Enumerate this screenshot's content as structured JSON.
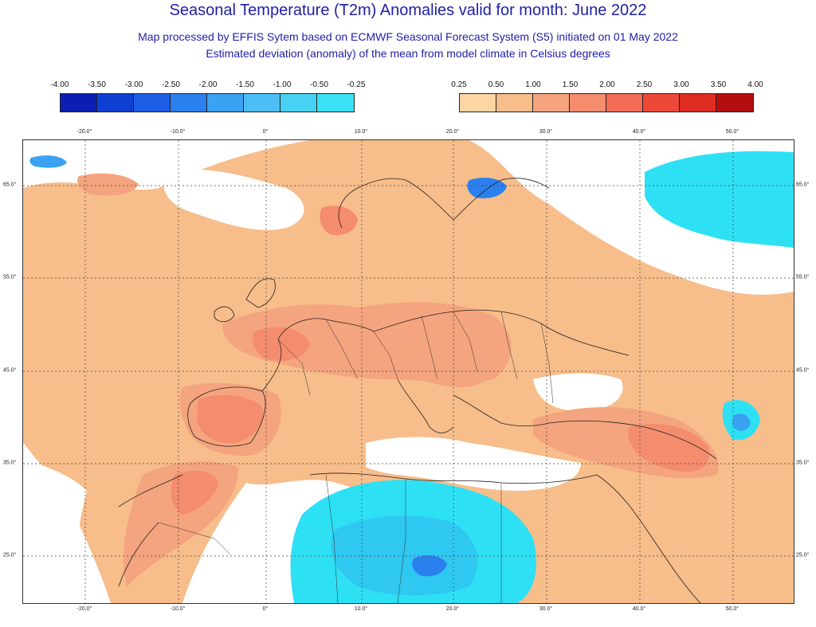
{
  "header": {
    "title": "Seasonal Temperature (T2m) Anomalies valid for month: June 2022",
    "subtitle1": "Map processed by EFFIS Sytem based on ECMWF Seasonal Forecast System (S5) initiated on 01 May 2022",
    "subtitle2": "Estimated deviation (anomaly) of the mean from model climate in Celsius degrees"
  },
  "legend": {
    "negative": {
      "labels": [
        "-4.00",
        "-3.50",
        "-3.00",
        "-2.50",
        "-2.00",
        "-1.50",
        "-1.00",
        "-0.50",
        "-0.25"
      ],
      "colors": [
        "#0a1eb4",
        "#0f3ed2",
        "#1e5ee6",
        "#2a80ee",
        "#3aa2f2",
        "#4cbef4",
        "#48d2f2",
        "#3ae2f6",
        "#3ff2f6"
      ]
    },
    "positive": {
      "labels": [
        "0.25",
        "0.50",
        "1.00",
        "1.50",
        "2.00",
        "2.50",
        "3.00",
        "3.50",
        "4.00"
      ],
      "colors": [
        "#fbd6a4",
        "#f7bd8a",
        "#f4a47e",
        "#f48c6e",
        "#f26c56",
        "#ee4838",
        "#de2c22",
        "#b40e0e"
      ]
    }
  },
  "axes": {
    "lon_labels": [
      "-20.0°",
      "-10.0°",
      "0°",
      "10.0°",
      "20.0°",
      "30.0°",
      "40.0°",
      "50.0°"
    ],
    "lat_labels": [
      "65.0°",
      "55.0°",
      "45.0°",
      "35.0°",
      "25.0°"
    ]
  },
  "colors": {
    "cool_light": "#2ee0f4",
    "cool_med": "#2fc8f0",
    "cool_deep": "#2a80ee",
    "warm_1": "#fbd6a4",
    "warm_2": "#f7bd8a",
    "warm_3": "#f4a47e",
    "warm_4": "#f48c6e",
    "warm_5": "#ee4838"
  }
}
